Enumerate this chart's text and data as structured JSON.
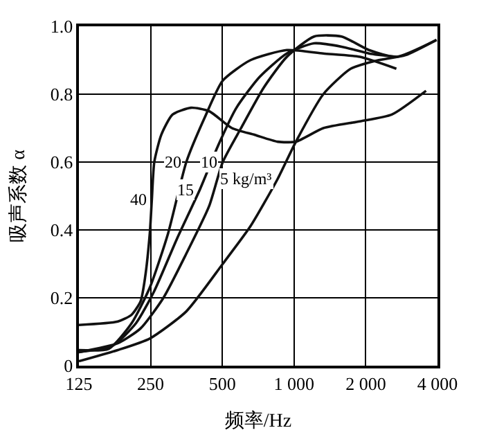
{
  "chart_data": {
    "type": "line",
    "xlabel": "频率/Hz",
    "ylabel": "吸声系数 α",
    "log": "x",
    "grid": true,
    "marker": "none",
    "line_style": "solid",
    "legend": false,
    "xlim": [
      125,
      4000
    ],
    "xticks": [
      125,
      250,
      500,
      {
        "value": 1000,
        "label": "1 000"
      },
      {
        "value": 2000,
        "label": "2 000"
      },
      {
        "value": 4000,
        "label": "4 000"
      }
    ],
    "ylim": [
      0,
      1
    ],
    "yticks": [
      0,
      0.2,
      0.4,
      0.6,
      0.8,
      {
        "value": 1,
        "label": "1.0"
      }
    ],
    "series": [
      {
        "name": "40",
        "color": "#111111",
        "x": [
          125,
          182,
          208,
          227,
          237,
          248,
          253,
          259,
          277,
          309,
          369,
          440,
          549,
          684,
          853,
          1018,
          1327,
          1889,
          2572,
          3582
        ],
        "values": [
          0.12,
          0.13,
          0.15,
          0.19,
          0.26,
          0.39,
          0.49,
          0.6,
          0.68,
          0.74,
          0.76,
          0.75,
          0.7,
          0.68,
          0.66,
          0.66,
          0.7,
          0.72,
          0.74,
          0.81
        ]
      },
      {
        "name": "20",
        "color": "#111111",
        "x": [
          125,
          167,
          208,
          248,
          296,
          353,
          421,
          502,
          655,
          932,
          1327,
          1889,
          2689
        ],
        "values": [
          0.046,
          0.05,
          0.125,
          0.23,
          0.39,
          0.6,
          0.73,
          0.84,
          0.9,
          0.93,
          0.92,
          0.91,
          0.875
        ]
      },
      {
        "name": "15",
        "color": "#111111",
        "x": [
          125,
          174,
          217,
          259,
          323,
          403,
          481,
          573,
          715,
          932,
          1214,
          1583,
          2063,
          2689
        ],
        "values": [
          0.04,
          0.06,
          0.125,
          0.22,
          0.375,
          0.52,
          0.65,
          0.76,
          0.85,
          0.92,
          0.95,
          0.94,
          0.92,
          0.91
        ]
      },
      {
        "name": "10",
        "color": "#111111",
        "x": [
          125,
          182,
          227,
          283,
          353,
          440,
          502,
          599,
          747,
          932,
          1214,
          1583,
          2063,
          2689,
          3965
        ],
        "values": [
          0.04,
          0.066,
          0.11,
          0.2,
          0.33,
          0.47,
          0.6,
          0.7,
          0.82,
          0.91,
          0.97,
          0.97,
          0.93,
          0.91,
          0.96
        ]
      },
      {
        "name": "5 kg/m³",
        "color": "#111111",
        "x": [
          125,
          182,
          248,
          353,
          502,
          655,
          853,
          1018,
          1327,
          1729,
          2254,
          2936,
          3965
        ],
        "values": [
          0.013,
          0.046,
          0.08,
          0.16,
          0.3,
          0.41,
          0.55,
          0.66,
          0.8,
          0.875,
          0.9,
          0.915,
          0.96
        ]
      }
    ]
  }
}
